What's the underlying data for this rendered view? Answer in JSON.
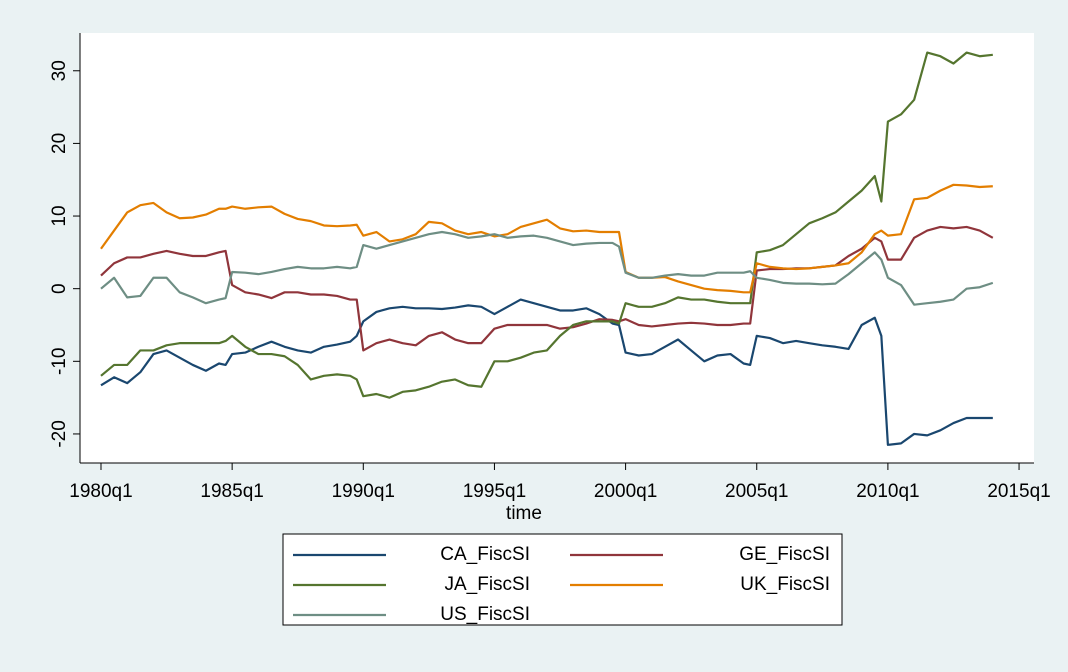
{
  "chart_data": {
    "type": "line",
    "x_label": "time",
    "x": [
      1980,
      1980.5,
      1981,
      1981.5,
      1982,
      1982.5,
      1983,
      1983.5,
      1984,
      1984.5,
      1984.75,
      1985,
      1985.5,
      1986,
      1986.5,
      1987,
      1987.5,
      1988,
      1988.5,
      1989,
      1989.5,
      1989.75,
      1990,
      1990.5,
      1991,
      1991.5,
      1992,
      1992.5,
      1993,
      1993.5,
      1994,
      1994.5,
      1995,
      1995.5,
      1996,
      1996.5,
      1997,
      1997.5,
      1998,
      1998.5,
      1999,
      1999.5,
      1999.75,
      2000,
      2000.5,
      2001,
      2001.5,
      2002,
      2002.5,
      2003,
      2003.5,
      2004,
      2004.5,
      2004.75,
      2005,
      2005.5,
      2006,
      2006.5,
      2007,
      2007.5,
      2008,
      2008.5,
      2009,
      2009.5,
      2009.75,
      2010,
      2010.5,
      2011,
      2011.5,
      2012,
      2012.5,
      2013,
      2013.5,
      2014
    ],
    "series": [
      {
        "name": "CA_FiscSI",
        "color": "#1a476f",
        "values": [
          -13.3,
          -12.2,
          -13,
          -11.5,
          -9,
          -8.5,
          -9.5,
          -10.5,
          -11.3,
          -10.3,
          -10.5,
          -9,
          -8.8,
          -8,
          -7.3,
          -8,
          -8.5,
          -8.8,
          -8,
          -7.7,
          -7.3,
          -6.5,
          -4.5,
          -3.2,
          -2.7,
          -2.5,
          -2.7,
          -2.7,
          -2.8,
          -2.6,
          -2.3,
          -2.5,
          -3.5,
          -2.5,
          -1.5,
          -2,
          -2.5,
          -3,
          -3,
          -2.7,
          -3.5,
          -4.8,
          -5,
          -8.8,
          -9.2,
          -9,
          -8,
          -7,
          -8.5,
          -10,
          -9.2,
          -9,
          -10.3,
          -10.5,
          -6.5,
          -6.8,
          -7.5,
          -7.2,
          -7.5,
          -7.8,
          -8,
          -8.3,
          -5,
          -4,
          -6.5,
          -21.5,
          -21.3,
          -20,
          -20.2,
          -19.5,
          -18.5,
          -17.8,
          -17.8,
          -17.8
        ]
      },
      {
        "name": "GE_FiscSI",
        "color": "#90353b",
        "values": [
          1.8,
          3.5,
          4.3,
          4.3,
          4.8,
          5.2,
          4.8,
          4.5,
          4.5,
          5,
          5.2,
          0.5,
          -0.5,
          -0.8,
          -1.3,
          -0.5,
          -0.5,
          -0.8,
          -0.8,
          -1,
          -1.5,
          -1.5,
          -8.5,
          -7.5,
          -7,
          -7.5,
          -7.8,
          -6.5,
          -6,
          -7,
          -7.5,
          -7.5,
          -5.5,
          -5,
          -5,
          -5,
          -5,
          -5.5,
          -5.3,
          -4.8,
          -4.2,
          -4.3,
          -4.5,
          -4.2,
          -5,
          -5.2,
          -5,
          -4.8,
          -4.7,
          -4.8,
          -5,
          -5,
          -4.8,
          -4.8,
          2.5,
          2.7,
          2.7,
          2.8,
          2.8,
          3,
          3.2,
          4.5,
          5.5,
          7,
          6.5,
          4,
          4,
          7,
          8,
          8.5,
          8.3,
          8.5,
          8,
          7
        ]
      },
      {
        "name": "JA_FiscSI",
        "color": "#55752f",
        "values": [
          -12,
          -10.5,
          -10.5,
          -8.5,
          -8.5,
          -7.8,
          -7.5,
          -7.5,
          -7.5,
          -7.5,
          -7.2,
          -6.5,
          -8,
          -9,
          -9,
          -9.3,
          -10.5,
          -12.5,
          -12,
          -11.8,
          -12,
          -12.5,
          -14.8,
          -14.5,
          -15,
          -14.2,
          -14,
          -13.5,
          -12.8,
          -12.5,
          -13.3,
          -13.5,
          -10,
          -10,
          -9.5,
          -8.8,
          -8.5,
          -6.5,
          -5,
          -4.5,
          -4.5,
          -4.5,
          -4.8,
          -2,
          -2.5,
          -2.5,
          -2,
          -1.2,
          -1.5,
          -1.5,
          -1.8,
          -2,
          -2,
          -2,
          5,
          5.3,
          6,
          7.5,
          9,
          9.7,
          10.5,
          12,
          13.5,
          15.5,
          12,
          23,
          24,
          26,
          32.5,
          32,
          31,
          32.5,
          32,
          32.2
        ]
      },
      {
        "name": "UK_FiscSI",
        "color": "#e37e00",
        "values": [
          5.5,
          8,
          10.5,
          11.5,
          11.8,
          10.5,
          9.7,
          9.8,
          10.2,
          11,
          11,
          11.3,
          11,
          11.2,
          11.3,
          10.3,
          9.6,
          9.3,
          8.7,
          8.6,
          8.7,
          8.8,
          7.3,
          7.8,
          6.5,
          6.8,
          7.5,
          9.2,
          9,
          8,
          7.5,
          7.8,
          7.2,
          7.5,
          8.5,
          9,
          9.5,
          8.3,
          7.9,
          8,
          7.8,
          7.8,
          7.8,
          2.3,
          1.5,
          1.5,
          1.6,
          1,
          0.5,
          0,
          -0.2,
          -0.3,
          -0.5,
          -0.5,
          3.5,
          3,
          2.8,
          2.7,
          2.8,
          3,
          3.2,
          3.5,
          5,
          7.5,
          8,
          7.3,
          7.5,
          12.3,
          12.5,
          13.5,
          14.3,
          14.2,
          14,
          14.1
        ]
      },
      {
        "name": "US_FiscSI",
        "color": "#6e8e84",
        "values": [
          0,
          1.5,
          -1.2,
          -1,
          1.5,
          1.5,
          -0.5,
          -1.2,
          -2,
          -1.5,
          -1.3,
          2.3,
          2.2,
          2,
          2.3,
          2.7,
          3,
          2.8,
          2.8,
          3,
          2.8,
          3,
          6,
          5.5,
          6,
          6.5,
          7,
          7.5,
          7.8,
          7.5,
          7,
          7.2,
          7.5,
          7,
          7.2,
          7.3,
          7,
          6.5,
          6,
          6.2,
          6.3,
          6.3,
          5.8,
          2.2,
          1.5,
          1.5,
          1.8,
          2,
          1.8,
          1.8,
          2.2,
          2.2,
          2.2,
          2.4,
          1.5,
          1.2,
          0.8,
          0.7,
          0.7,
          0.6,
          0.7,
          2,
          3.5,
          5,
          4,
          1.5,
          0.5,
          -2.2,
          -2,
          -1.8,
          -1.5,
          0,
          0.2,
          0.8
        ]
      }
    ],
    "xlim": [
      1979.2,
      2015.57
    ],
    "xticks": [
      {
        "value": 1980,
        "label": "1980q1"
      },
      {
        "value": 1985,
        "label": "1985q1"
      },
      {
        "value": 1990,
        "label": "1990q1"
      },
      {
        "value": 1995,
        "label": "1995q1"
      },
      {
        "value": 2000,
        "label": "2000q1"
      },
      {
        "value": 2005,
        "label": "2005q1"
      },
      {
        "value": 2010,
        "label": "2010q1"
      },
      {
        "value": 2015,
        "label": "2015q1"
      }
    ],
    "ylim": [
      -24,
      35.2
    ],
    "yticks": [
      -20,
      -10,
      0,
      10,
      20,
      30
    ],
    "grid": false,
    "legend_position": "bottom"
  }
}
